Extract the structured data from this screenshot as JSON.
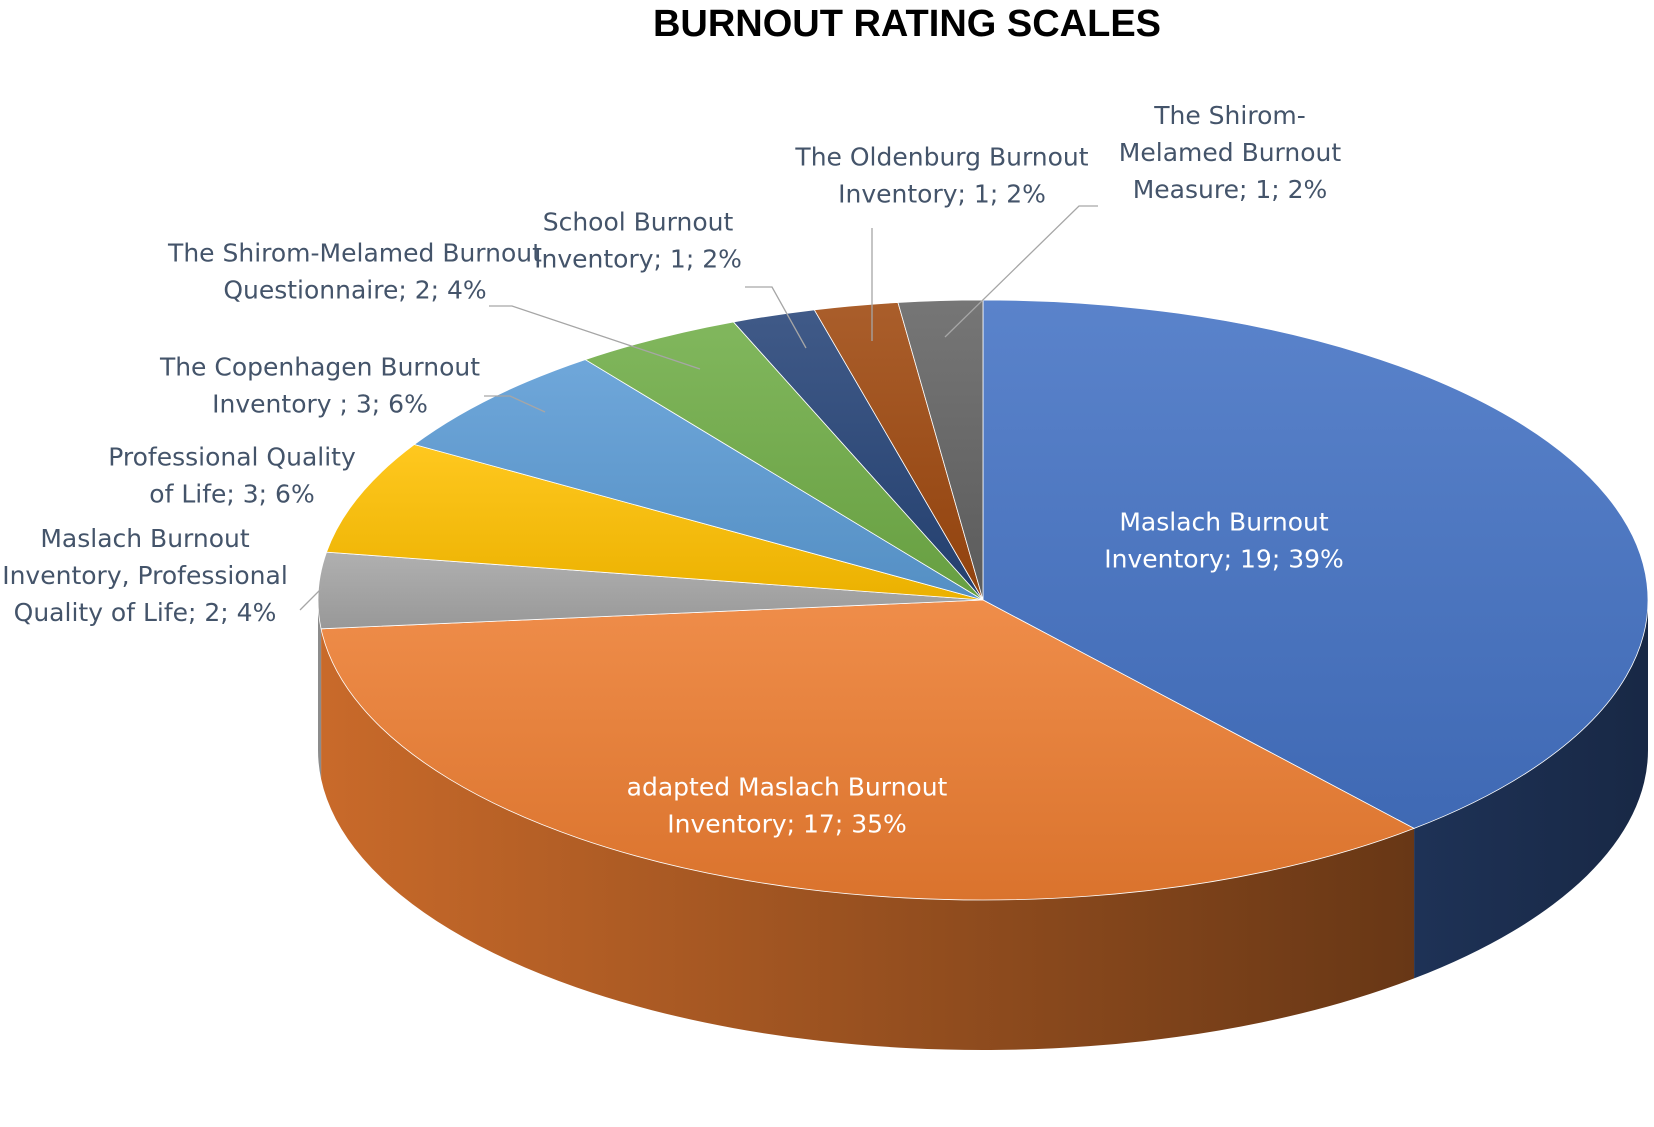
{
  "chart_data": {
    "type": "pie",
    "title": "BURNOUT RATING SCALES",
    "style": "3d",
    "slices": [
      {
        "label": "Maslach Burnout Inventory",
        "value": 19,
        "percent": "39%",
        "color": "#4472C4",
        "label_lines": [
          "Maslach Burnout",
          "Inventory; 19; 39%"
        ]
      },
      {
        "label": "adapted Maslach Burnout Inventory",
        "value": 17,
        "percent": "35%",
        "color": "#ED7D31",
        "label_lines": [
          "adapted Maslach Burnout",
          "Inventory; 17; 35%"
        ]
      },
      {
        "label": "Maslach Burnout Inventory, Professional Quality of Life",
        "value": 2,
        "percent": "4%",
        "color": "#A5A5A5",
        "label_lines": [
          "Maslach Burnout",
          "Inventory, Professional",
          "Quality of Life; 2; 4%"
        ]
      },
      {
        "label": "Professional Quality of Life",
        "value": 3,
        "percent": "6%",
        "color": "#FFC000",
        "label_lines": [
          "Professional Quality",
          "of Life; 3; 6%"
        ]
      },
      {
        "label": "The Copenhagen Burnout Inventory ",
        "value": 3,
        "percent": "6%",
        "color": "#5B9BD5",
        "label_lines": [
          "The Copenhagen Burnout",
          "Inventory ; 3; 6%"
        ]
      },
      {
        "label": "The Shirom-Melamed Burnout Questionnaire",
        "value": 2,
        "percent": "4%",
        "color": "#70AD47",
        "label_lines": [
          "The Shirom-Melamed Burnout",
          "Questionnaire; 2; 4%"
        ]
      },
      {
        "label": "School Burnout Inventory",
        "value": 1,
        "percent": "2%",
        "color": "#264478",
        "label_lines": [
          "School Burnout",
          "Inventory; 1; 2%"
        ]
      },
      {
        "label": "The Oldenburg Burnout Inventory",
        "value": 1,
        "percent": "2%",
        "color": "#9E480E",
        "label_lines": [
          "The Oldenburg Burnout",
          "Inventory; 1; 2%"
        ]
      },
      {
        "label": "The Shirom-Melamed Burnout Measure",
        "value": 1,
        "percent": "2%",
        "color": "#636363",
        "label_lines": [
          "The Shirom-",
          "Melamed Burnout",
          "Measure; 1; 2%"
        ]
      }
    ],
    "label_colors": {
      "inside": "#FFFFFF",
      "outside": "#44546A"
    },
    "legend": "none"
  }
}
